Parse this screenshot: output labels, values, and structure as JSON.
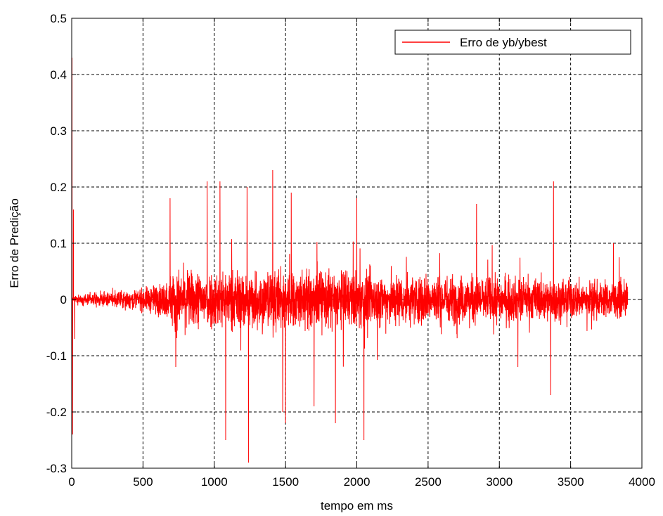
{
  "chart_data": {
    "type": "line",
    "xlabel": "tempo em ms",
    "ylabel": "Erro de Predição",
    "xlim": [
      0,
      4000
    ],
    "ylim": [
      -0.3,
      0.5
    ],
    "xticks": [
      0,
      500,
      1000,
      1500,
      2000,
      2500,
      3000,
      3500,
      4000
    ],
    "xtick_labels": [
      "0",
      "500",
      "1000",
      "1500",
      "2000",
      "2500",
      "3000",
      "3500",
      "4000"
    ],
    "yticks": [
      -0.3,
      -0.2,
      -0.1,
      0,
      0.1,
      0.2,
      0.3,
      0.4,
      0.5
    ],
    "ytick_labels": [
      "-0.3",
      "-0.2",
      "-0.1",
      "0",
      "0.1",
      "0.2",
      "0.3",
      "0.4",
      "0.5"
    ],
    "grid": true,
    "grid_style": "dashed",
    "legend_position": "top-right",
    "series": [
      {
        "name": "Erro de yb/ybest",
        "color": "#ff0000",
        "x_range": [
          0,
          3900
        ],
        "sample_count": 3900,
        "noise_envelope": [
          {
            "x": 0,
            "amplitude": 0.005
          },
          {
            "x": 50,
            "amplitude": 0.012
          },
          {
            "x": 300,
            "amplitude": 0.02
          },
          {
            "x": 500,
            "amplitude": 0.03
          },
          {
            "x": 680,
            "amplitude": 0.05
          },
          {
            "x": 700,
            "amplitude": 0.075
          },
          {
            "x": 1500,
            "amplitude": 0.08
          },
          {
            "x": 2200,
            "amplitude": 0.07
          },
          {
            "x": 3000,
            "amplitude": 0.06
          },
          {
            "x": 3900,
            "amplitude": 0.045
          }
        ],
        "peaks": [
          {
            "x": 2,
            "y": 0.43
          },
          {
            "x": 6,
            "y": -0.24
          },
          {
            "x": 12,
            "y": 0.16
          },
          {
            "x": 20,
            "y": -0.07
          },
          {
            "x": 690,
            "y": 0.18
          },
          {
            "x": 730,
            "y": -0.12
          },
          {
            "x": 950,
            "y": 0.21
          },
          {
            "x": 1040,
            "y": 0.21
          },
          {
            "x": 1080,
            "y": -0.25
          },
          {
            "x": 1230,
            "y": 0.2
          },
          {
            "x": 1240,
            "y": -0.29
          },
          {
            "x": 1410,
            "y": 0.23
          },
          {
            "x": 1480,
            "y": -0.2
          },
          {
            "x": 1500,
            "y": -0.22
          },
          {
            "x": 1540,
            "y": 0.19
          },
          {
            "x": 1700,
            "y": -0.19
          },
          {
            "x": 1850,
            "y": -0.22
          },
          {
            "x": 2050,
            "y": -0.25
          },
          {
            "x": 2000,
            "y": 0.18
          },
          {
            "x": 2840,
            "y": 0.17
          },
          {
            "x": 3380,
            "y": 0.21
          },
          {
            "x": 3360,
            "y": -0.17
          },
          {
            "x": 3130,
            "y": -0.12
          },
          {
            "x": 3800,
            "y": 0.1
          }
        ]
      }
    ]
  }
}
